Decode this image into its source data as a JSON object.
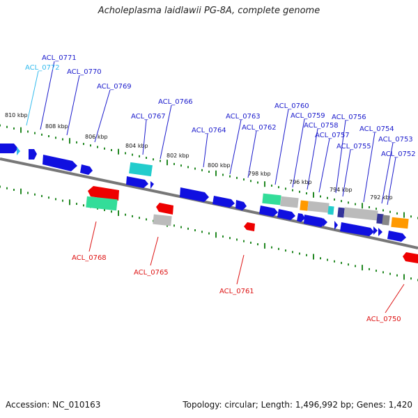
{
  "title": "Acholeplasma laidlawii PG-8A, complete genome",
  "footer": {
    "accession": "Accession: NC_010163",
    "summary": "Topology: circular; Length: 1,496,992 bp; Genes: 1,420"
  },
  "colors": {
    "forward_label": "#1a1acc",
    "reverse_label": "#dd1111",
    "highlight_label": "#33bbee",
    "tick": "#228822",
    "backbone": "#777777"
  },
  "kbp_labels": [
    "810 kbp",
    "808 kbp",
    "806 kbp",
    "804 kbp",
    "802 kbp",
    "800 kbp",
    "798 kbp",
    "796 kbp",
    "794 kbp",
    "792 kbp"
  ],
  "forward_genes": [
    {
      "label": "ACL_0772",
      "style": "highlight"
    },
    {
      "label": "ACL_0771",
      "style": "forward"
    },
    {
      "label": "ACL_0770",
      "style": "forward"
    },
    {
      "label": "ACL_0769",
      "style": "forward"
    },
    {
      "label": "ACL_0767",
      "style": "forward"
    },
    {
      "label": "ACL_0766",
      "style": "forward"
    },
    {
      "label": "ACL_0764",
      "style": "forward"
    },
    {
      "label": "ACL_0763",
      "style": "forward"
    },
    {
      "label": "ACL_0762",
      "style": "forward"
    },
    {
      "label": "ACL_0760",
      "style": "forward"
    },
    {
      "label": "ACL_0759",
      "style": "forward"
    },
    {
      "label": "ACL_0758",
      "style": "forward"
    },
    {
      "label": "ACL_0757",
      "style": "forward"
    },
    {
      "label": "ACL_0756",
      "style": "forward"
    },
    {
      "label": "ACL_0755",
      "style": "forward"
    },
    {
      "label": "ACL_0754",
      "style": "forward"
    },
    {
      "label": "ACL_0753",
      "style": "forward"
    },
    {
      "label": "ACL_0752",
      "style": "forward"
    }
  ],
  "reverse_genes": [
    {
      "label": "ACL_0768",
      "style": "reverse"
    },
    {
      "label": "ACL_0765",
      "style": "reverse"
    },
    {
      "label": "ACL_0761",
      "style": "reverse"
    },
    {
      "label": "ACL_0750",
      "style": "reverse"
    }
  ]
}
